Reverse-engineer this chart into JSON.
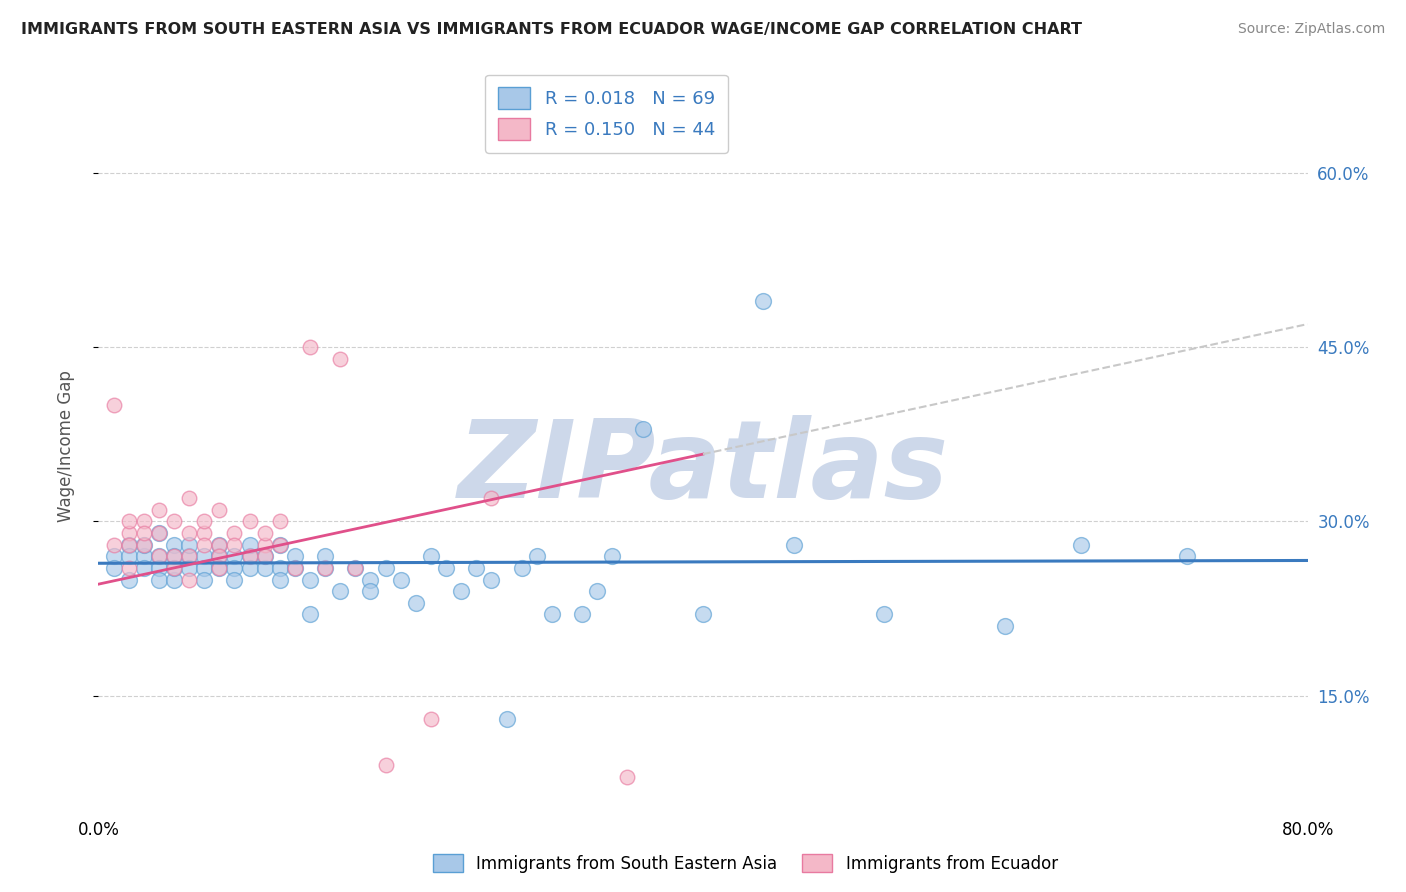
{
  "title": "IMMIGRANTS FROM SOUTH EASTERN ASIA VS IMMIGRANTS FROM ECUADOR WAGE/INCOME GAP CORRELATION CHART",
  "source": "Source: ZipAtlas.com",
  "ylabel": "Wage/Income Gap",
  "yticks": [
    0.15,
    0.3,
    0.45,
    0.6
  ],
  "ytick_labels": [
    "15.0%",
    "30.0%",
    "45.0%",
    "60.0%"
  ],
  "xlim": [
    0.0,
    0.8
  ],
  "ylim": [
    0.05,
    0.68
  ],
  "R_blue": 0.018,
  "N_blue": 69,
  "R_pink": 0.15,
  "N_pink": 44,
  "legend_label_blue": "Immigrants from South Eastern Asia",
  "legend_label_pink": "Immigrants from Ecuador",
  "blue_color": "#a8c8e8",
  "pink_color": "#f4b8c8",
  "blue_edge_color": "#5a9fd4",
  "pink_edge_color": "#e87aa0",
  "trend_blue_color": "#3a7abf",
  "trend_pink_color": "#e0508a",
  "trend_pink_dashed_color": "#c8c8c8",
  "watermark_color": "#c8d4e8",
  "background_color": "#ffffff",
  "grid_color": "#d0d0d0",
  "blue_scatter_x": [
    0.01,
    0.01,
    0.02,
    0.02,
    0.02,
    0.03,
    0.03,
    0.03,
    0.04,
    0.04,
    0.04,
    0.04,
    0.05,
    0.05,
    0.05,
    0.05,
    0.06,
    0.06,
    0.06,
    0.07,
    0.07,
    0.07,
    0.08,
    0.08,
    0.08,
    0.09,
    0.09,
    0.09,
    0.1,
    0.1,
    0.1,
    0.11,
    0.11,
    0.12,
    0.12,
    0.12,
    0.13,
    0.13,
    0.14,
    0.14,
    0.15,
    0.15,
    0.16,
    0.17,
    0.18,
    0.18,
    0.19,
    0.2,
    0.21,
    0.22,
    0.23,
    0.24,
    0.25,
    0.26,
    0.27,
    0.28,
    0.29,
    0.3,
    0.32,
    0.33,
    0.34,
    0.36,
    0.4,
    0.44,
    0.46,
    0.52,
    0.6,
    0.65,
    0.72
  ],
  "blue_scatter_y": [
    0.27,
    0.26,
    0.28,
    0.27,
    0.25,
    0.27,
    0.26,
    0.28,
    0.27,
    0.29,
    0.26,
    0.25,
    0.28,
    0.27,
    0.25,
    0.26,
    0.27,
    0.26,
    0.28,
    0.27,
    0.26,
    0.25,
    0.27,
    0.28,
    0.26,
    0.27,
    0.26,
    0.25,
    0.27,
    0.26,
    0.28,
    0.26,
    0.27,
    0.28,
    0.26,
    0.25,
    0.27,
    0.26,
    0.22,
    0.25,
    0.26,
    0.27,
    0.24,
    0.26,
    0.25,
    0.24,
    0.26,
    0.25,
    0.23,
    0.27,
    0.26,
    0.24,
    0.26,
    0.25,
    0.13,
    0.26,
    0.27,
    0.22,
    0.22,
    0.24,
    0.27,
    0.38,
    0.22,
    0.49,
    0.28,
    0.22,
    0.21,
    0.28,
    0.27
  ],
  "pink_scatter_x": [
    0.01,
    0.01,
    0.02,
    0.02,
    0.02,
    0.02,
    0.03,
    0.03,
    0.03,
    0.04,
    0.04,
    0.04,
    0.05,
    0.05,
    0.05,
    0.06,
    0.06,
    0.06,
    0.06,
    0.07,
    0.07,
    0.07,
    0.08,
    0.08,
    0.08,
    0.08,
    0.09,
    0.09,
    0.1,
    0.1,
    0.11,
    0.11,
    0.11,
    0.12,
    0.12,
    0.13,
    0.14,
    0.15,
    0.16,
    0.17,
    0.19,
    0.22,
    0.26,
    0.35
  ],
  "pink_scatter_y": [
    0.4,
    0.28,
    0.29,
    0.28,
    0.3,
    0.26,
    0.28,
    0.3,
    0.29,
    0.29,
    0.27,
    0.31,
    0.26,
    0.27,
    0.3,
    0.29,
    0.27,
    0.32,
    0.25,
    0.29,
    0.28,
    0.3,
    0.28,
    0.27,
    0.31,
    0.26,
    0.29,
    0.28,
    0.3,
    0.27,
    0.28,
    0.27,
    0.29,
    0.28,
    0.3,
    0.26,
    0.45,
    0.26,
    0.44,
    0.26,
    0.09,
    0.13,
    0.32,
    0.08
  ],
  "trend_blue_intercept": 0.264,
  "trend_blue_slope": 0.003,
  "trend_pink_intercept": 0.246,
  "trend_pink_slope": 0.28
}
